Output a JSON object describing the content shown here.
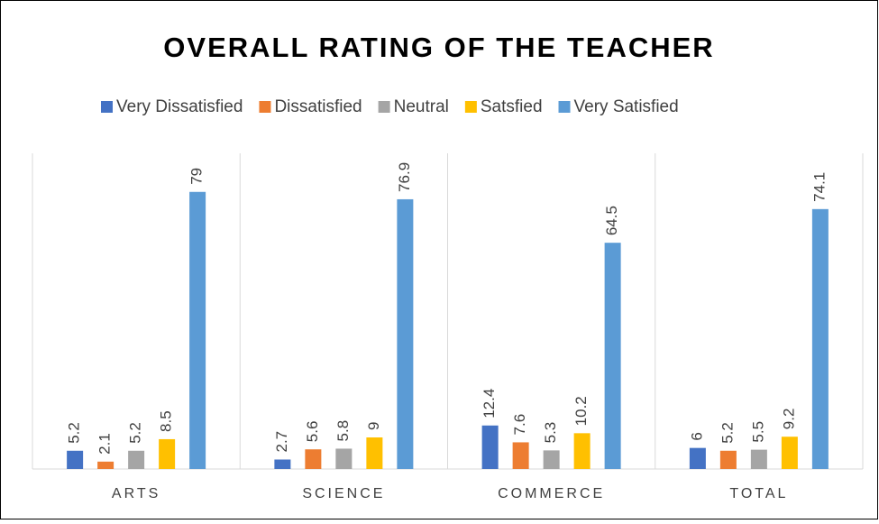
{
  "chart_data": {
    "type": "bar",
    "title": "OVERALL RATING OF THE TEACHER",
    "categories": [
      "ARTS",
      "SCIENCE",
      "COMMERCE",
      "TOTAL"
    ],
    "series": [
      {
        "name": "Very Dissatisfied",
        "color": "#4472c4",
        "values": [
          5.2,
          2.7,
          12.4,
          6
        ]
      },
      {
        "name": "Dissatisfied",
        "color": "#ed7d31",
        "values": [
          2.1,
          5.6,
          7.6,
          5.2
        ]
      },
      {
        "name": "Neutral",
        "color": "#a5a5a5",
        "values": [
          5.2,
          5.8,
          5.3,
          5.5
        ]
      },
      {
        "name": "Satsfied",
        "color": "#ffc000",
        "values": [
          8.5,
          9,
          10.2,
          9.2
        ]
      },
      {
        "name": "Very Satisfied",
        "color": "#5b9bd5",
        "values": [
          79,
          76.9,
          64.5,
          74.1
        ]
      }
    ],
    "ylim": [
      0,
      90
    ],
    "legend": "top"
  }
}
